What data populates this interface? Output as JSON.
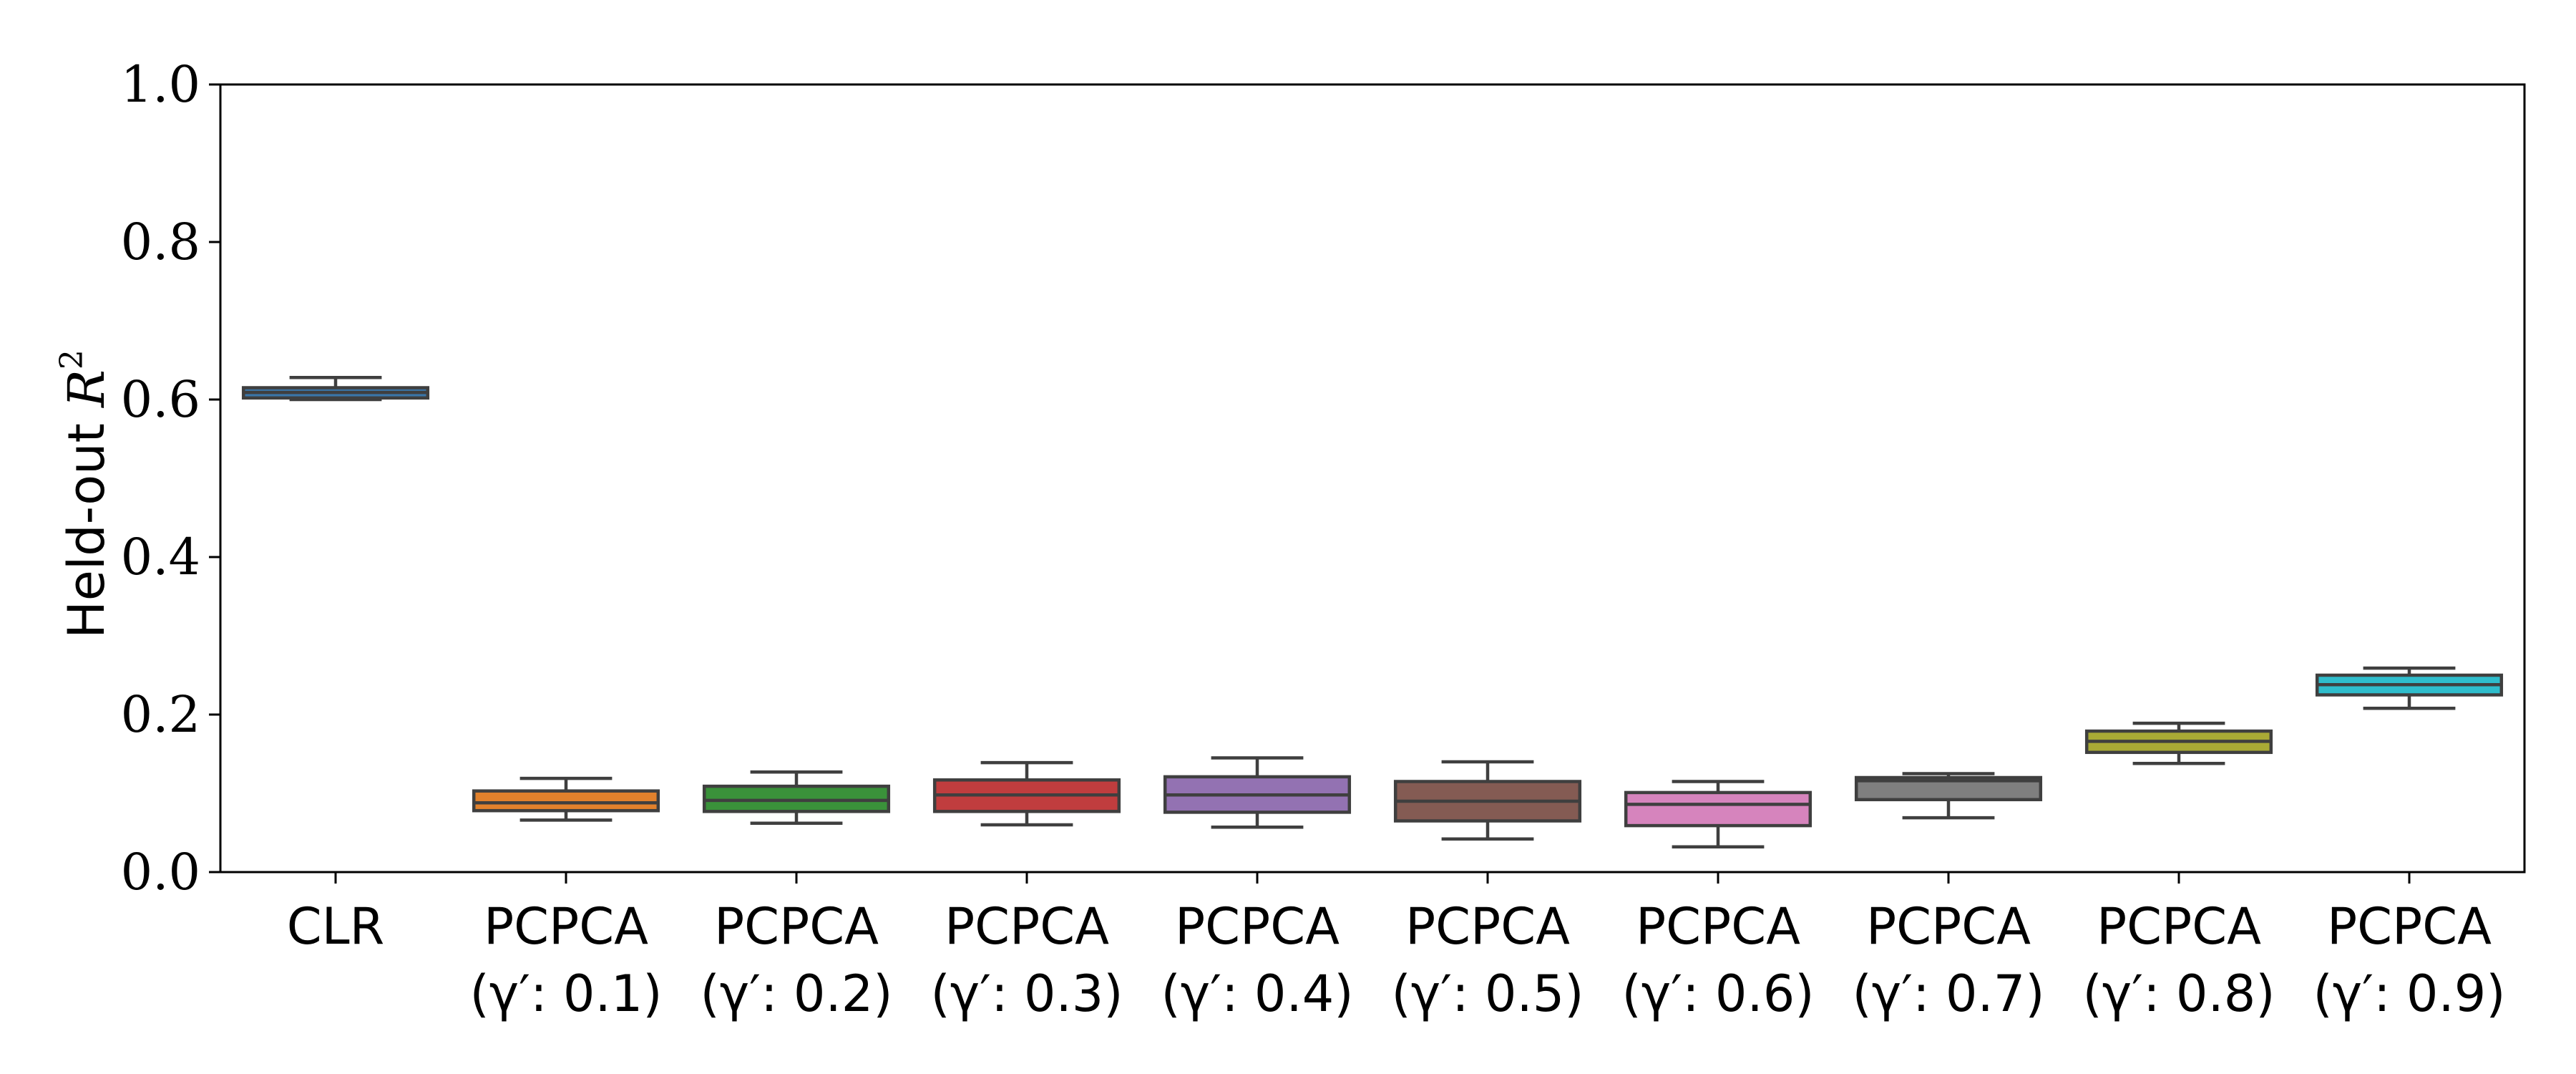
{
  "chart_data": {
    "type": "box",
    "ylabel_prefix": "Held-out ",
    "ylabel_symbol": "R",
    "ylabel_superscript": "2",
    "xlabel": "",
    "ylim": [
      0.0,
      1.0
    ],
    "yticks": [
      "0.0",
      "0.2",
      "0.4",
      "0.6",
      "0.8",
      "1.0"
    ],
    "grid": false,
    "legend": "none",
    "categories": [
      {
        "line1": "CLR",
        "line2": ""
      },
      {
        "line1": "PCPCA",
        "line2": "(γ′: 0.1)"
      },
      {
        "line1": "PCPCA",
        "line2": "(γ′: 0.2)"
      },
      {
        "line1": "PCPCA",
        "line2": "(γ′: 0.3)"
      },
      {
        "line1": "PCPCA",
        "line2": "(γ′: 0.4)"
      },
      {
        "line1": "PCPCA",
        "line2": "(γ′: 0.5)"
      },
      {
        "line1": "PCPCA",
        "line2": "(γ′: 0.6)"
      },
      {
        "line1": "PCPCA",
        "line2": "(γ′: 0.7)"
      },
      {
        "line1": "PCPCA",
        "line2": "(γ′: 0.8)"
      },
      {
        "line1": "PCPCA",
        "line2": "(γ′: 0.9)"
      }
    ],
    "boxes": [
      {
        "whisker_low": 0.6,
        "q1": 0.602,
        "median": 0.609,
        "q3": 0.615,
        "whisker_high": 0.628,
        "color": "#3a75a8"
      },
      {
        "whisker_low": 0.066,
        "q1": 0.078,
        "median": 0.088,
        "q3": 0.103,
        "whisker_high": 0.119,
        "color": "#e1812c"
      },
      {
        "whisker_low": 0.062,
        "q1": 0.077,
        "median": 0.091,
        "q3": 0.109,
        "whisker_high": 0.127,
        "color": "#3a923a"
      },
      {
        "whisker_low": 0.06,
        "q1": 0.077,
        "median": 0.098,
        "q3": 0.117,
        "whisker_high": 0.139,
        "color": "#c03d3e"
      },
      {
        "whisker_low": 0.057,
        "q1": 0.076,
        "median": 0.098,
        "q3": 0.121,
        "whisker_high": 0.145,
        "color": "#9372b2"
      },
      {
        "whisker_low": 0.042,
        "q1": 0.065,
        "median": 0.09,
        "q3": 0.115,
        "whisker_high": 0.14,
        "color": "#845b53"
      },
      {
        "whisker_low": 0.032,
        "q1": 0.059,
        "median": 0.086,
        "q3": 0.101,
        "whisker_high": 0.115,
        "color": "#d684bd"
      },
      {
        "whisker_low": 0.069,
        "q1": 0.092,
        "median": 0.116,
        "q3": 0.12,
        "whisker_high": 0.125,
        "color": "#7f7f7f"
      },
      {
        "whisker_low": 0.138,
        "q1": 0.152,
        "median": 0.166,
        "q3": 0.179,
        "whisker_high": 0.189,
        "color": "#a9aa35"
      },
      {
        "whisker_low": 0.208,
        "q1": 0.225,
        "median": 0.238,
        "q3": 0.25,
        "whisker_high": 0.259,
        "color": "#2ebdcc"
      }
    ]
  }
}
